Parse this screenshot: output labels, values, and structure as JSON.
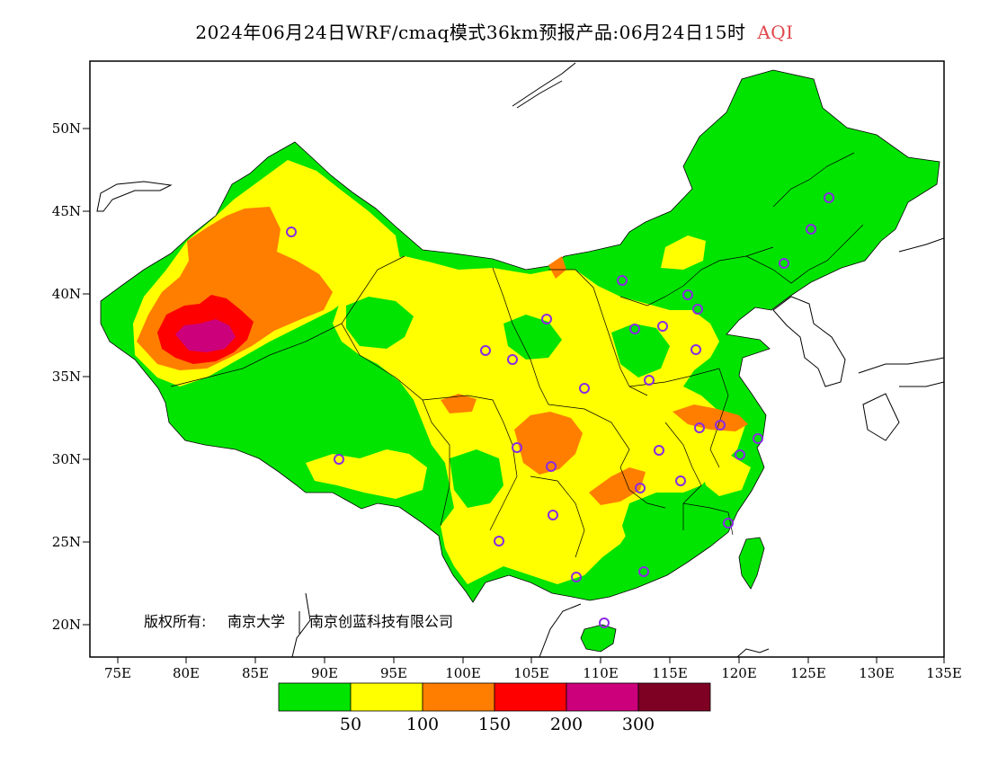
{
  "title": {
    "main": "2024年06月24日WRF/cmaq模式36km预报产品:06月24日15时",
    "variable": "AQI"
  },
  "axes": {
    "lat_ticks": [
      "50N",
      "45N",
      "40N",
      "35N",
      "30N",
      "25N",
      "20N"
    ],
    "lon_ticks": [
      "75E",
      "80E",
      "85E",
      "90E",
      "95E",
      "100E",
      "105E",
      "110E",
      "115E",
      "120E",
      "125E",
      "130E",
      "135E"
    ]
  },
  "copyright": {
    "label": "版权所有:",
    "owner1": "南京大学",
    "owner2": "南京创蓝科技有限公司"
  },
  "legend": {
    "colors": [
      "#00e400",
      "#ffff00",
      "#ff7e00",
      "#ff0000",
      "#cc007a",
      "#7e0023"
    ],
    "breaks": [
      "50",
      "100",
      "150",
      "200",
      "300"
    ]
  },
  "map_colors": {
    "green": "#00e400",
    "yellow": "#ffff00",
    "orange": "#ff7e00",
    "red": "#ff0000",
    "magenta": "#cc007a",
    "station": "#8a2be2"
  }
}
